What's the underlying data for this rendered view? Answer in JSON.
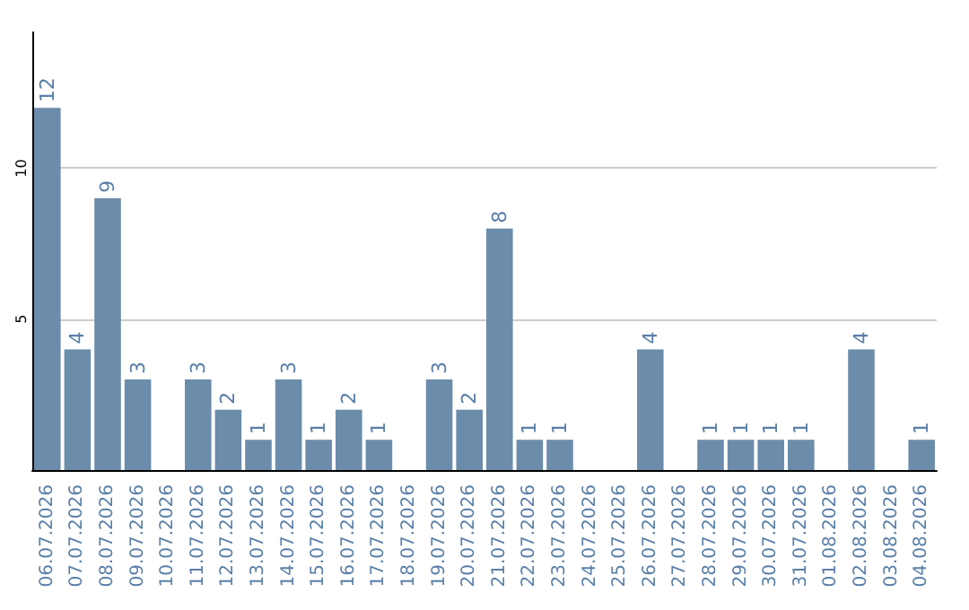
{
  "chart_data": {
    "type": "bar",
    "categories": [
      "06.07.2026",
      "07.07.2026",
      "08.07.2026",
      "09.07.2026",
      "10.07.2026",
      "11.07.2026",
      "12.07.2026",
      "13.07.2026",
      "14.07.2026",
      "15.07.2026",
      "16.07.2026",
      "17.07.2026",
      "18.07.2026",
      "19.07.2026",
      "20.07.2026",
      "21.07.2026",
      "22.07.2026",
      "23.07.2026",
      "24.07.2026",
      "25.07.2026",
      "26.07.2026",
      "27.07.2026",
      "28.07.2026",
      "29.07.2026",
      "30.07.2026",
      "31.07.2026",
      "01.08.2026",
      "02.08.2026",
      "03.08.2026",
      "04.08.2026"
    ],
    "values": [
      12,
      4,
      9,
      3,
      0,
      3,
      2,
      1,
      3,
      1,
      2,
      1,
      0,
      3,
      2,
      8,
      1,
      1,
      0,
      0,
      4,
      0,
      1,
      1,
      1,
      1,
      0,
      4,
      0,
      1
    ],
    "value_labels": [
      "12",
      "4",
      "9",
      "3",
      null,
      "3",
      "2",
      "1",
      "3",
      "1",
      "2",
      "1",
      null,
      "3",
      "2",
      "8",
      "1",
      "1",
      null,
      null,
      "4",
      null,
      "1",
      "1",
      "1",
      "1",
      null,
      "4",
      null,
      "1"
    ],
    "color": "#6b8caa",
    "ylim": [
      0,
      14.5
    ],
    "yticks": [
      {
        "value": 0,
        "label": null
      },
      5,
      10
    ],
    "grid": "y"
  }
}
